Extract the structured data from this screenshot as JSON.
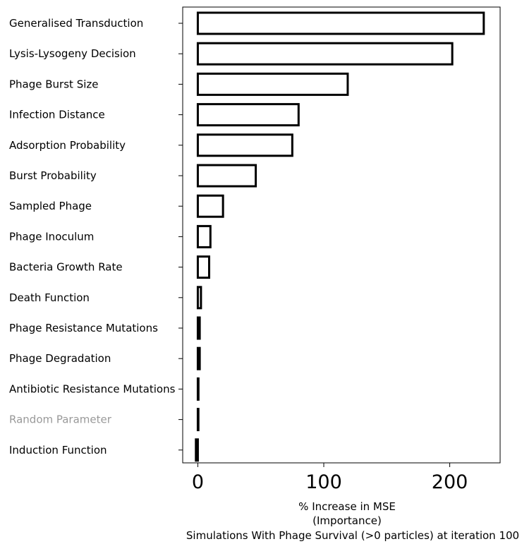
{
  "chart_data": {
    "type": "bar",
    "orientation": "horizontal",
    "categories": [
      "Generalised Transduction",
      "Lysis-Lysogeny Decision",
      "Phage Burst Size",
      "Infection Distance",
      "Adsorption Probability",
      "Burst Probability",
      "Sampled Phage",
      "Phage Inoculum",
      "Bacteria Growth Rate",
      "Death Function",
      "Phage Resistance Mutations",
      "Phage Degradation",
      "Antibiotic Resistance Mutations",
      "Random Parameter",
      "Induction Function"
    ],
    "values": [
      227,
      202,
      119,
      80,
      75,
      46,
      20,
      10,
      9,
      2.5,
      1.5,
      1.5,
      0.5,
      0,
      -1.5
    ],
    "xlabel_lines": [
      "% Increase in MSE",
      "(Importance)",
      "Simulations With Phage Survival (>0 particles) at iteration 100"
    ],
    "xticks": [
      0,
      100,
      200
    ],
    "xlim": [
      -12,
      240
    ],
    "highlight_category": "Random Parameter",
    "colors": {
      "bar_fill": "#ffffff",
      "bar_edge": "#000000",
      "label": "#000000",
      "highlight_label": "#999999"
    },
    "grid": false
  }
}
